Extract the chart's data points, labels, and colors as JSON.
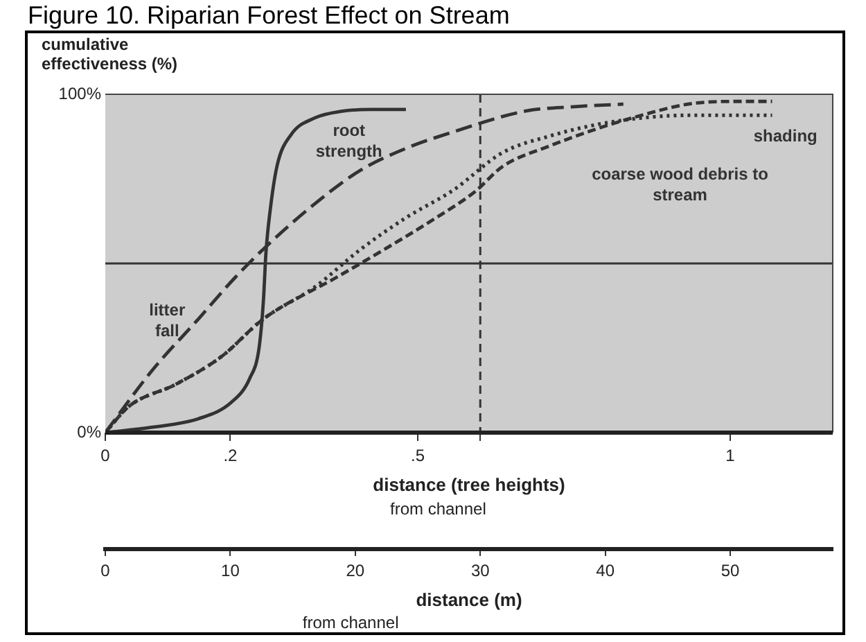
{
  "chart_data": {
    "type": "line",
    "title": "Figure 10. Riparian Forest Effect on Stream",
    "ylabel": "cumulative effectiveness (%)",
    "xlabel": "distance (tree heights)",
    "x2label": "distance (m)",
    "annotations": [
      "from channel",
      "from channel"
    ],
    "xlim": [
      0,
      1.164
    ],
    "xticks": [
      0,
      {
        "value": 0.2,
        "label": ".2"
      },
      {
        "value": 0.5,
        "label": ".5"
      },
      {
        "value": 0.6,
        "label": null
      },
      1
    ],
    "x2lim": [
      0,
      58.2
    ],
    "x2ticks": [
      0,
      10,
      20,
      30,
      40,
      50
    ],
    "ylim": [
      0,
      100
    ],
    "yticks": [
      {
        "value": 0,
        "label": "0%"
      },
      {
        "value": 100,
        "label": "100%"
      }
    ],
    "grid": false,
    "legend": false,
    "marker": "none",
    "ref_lines": [
      {
        "axis": "y",
        "value": 50,
        "line_style": "solid",
        "color": "#333333"
      },
      {
        "axis": "x",
        "value": 0.6,
        "line_style": "dashed",
        "color": "#333333"
      }
    ],
    "series": [
      {
        "name": "root strength",
        "color": "#333333",
        "line_style": "solid",
        "x": [
          0,
          0.075,
          0.149,
          0.202,
          0.231,
          0.246,
          0.253,
          0.257,
          0.264,
          0.275,
          0.297,
          0.335,
          0.379,
          0.424,
          0.481
        ],
        "values": [
          0,
          1.6,
          4.1,
          9,
          16,
          25,
          39,
          53,
          66,
          79,
          88,
          93,
          95,
          95.5,
          95.5
        ]
      },
      {
        "name": "litter fall",
        "color": "#333333",
        "line_style": "dashed",
        "x": [
          0,
          0.075,
          0.149,
          0.208,
          0.259,
          0.335,
          0.408,
          0.481,
          0.557,
          0.674,
          0.747,
          0.829
        ],
        "values": [
          0,
          18.4,
          33.6,
          45.9,
          55.3,
          67.6,
          77.5,
          84,
          88.9,
          95.1,
          96.3,
          97.1
        ]
      },
      {
        "name": "coarse wood debris to stream",
        "color": "#333333",
        "line_style": "dashed",
        "x": [
          0,
          0.038,
          0.113,
          0.186,
          0.253,
          0.37,
          0.446,
          0.519,
          0.592,
          0.636,
          0.712,
          0.785,
          0.858,
          0.933,
          1.007,
          1.067
        ],
        "values": [
          0,
          7.8,
          14.3,
          22.5,
          33.6,
          45.9,
          54.1,
          62.3,
          71.3,
          78.7,
          84.8,
          89.7,
          93.8,
          97.1,
          97.9,
          97.9
        ]
      },
      {
        "name": "shading",
        "color": "#333333",
        "line_style": "dotted",
        "x": [
          0,
          0.038,
          0.113,
          0.186,
          0.253,
          0.335,
          0.408,
          0.481,
          0.557,
          0.636,
          0.712,
          0.785,
          0.858,
          0.933,
          1.067
        ],
        "values": [
          0,
          7.8,
          14.3,
          22.5,
          33.6,
          43,
          54.1,
          63.5,
          71.7,
          82.8,
          87.7,
          91,
          93,
          93.8,
          93.8
        ]
      }
    ]
  }
}
